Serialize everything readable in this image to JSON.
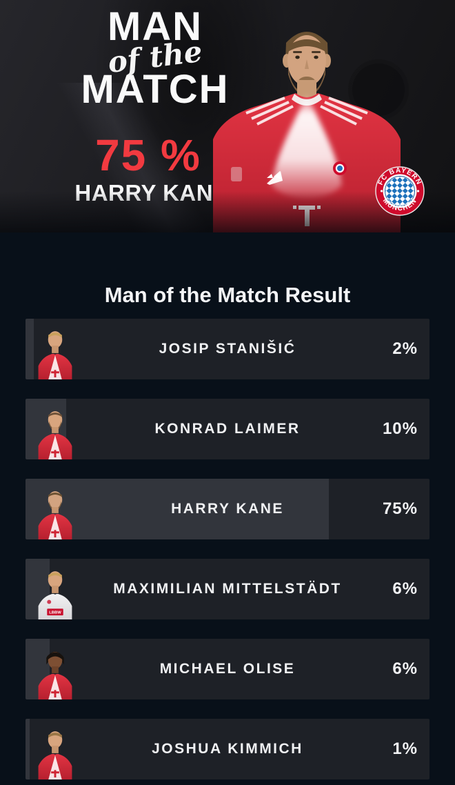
{
  "banner": {
    "title_line1": "MAN",
    "title_line2": "of the",
    "title_line3": "MATCH",
    "winner_percent": "75 %",
    "winner_name": "HARRY KANE",
    "badge_top_text": "FC BAYERN",
    "badge_bottom_text": "MÜNCHEN"
  },
  "results": {
    "heading": "Man of the Match Result",
    "rows": [
      {
        "name": "JOSIP STANIŠIĆ",
        "percent": 2,
        "percent_label": "2%"
      },
      {
        "name": "KONRAD LAIMER",
        "percent": 10,
        "percent_label": "10%"
      },
      {
        "name": "HARRY KANE",
        "percent": 75,
        "percent_label": "75%"
      },
      {
        "name": "MAXIMILIAN MITTELSTÄDT",
        "percent": 6,
        "percent_label": "6%"
      },
      {
        "name": "MICHAEL OLISE",
        "percent": 6,
        "percent_label": "6%"
      },
      {
        "name": "JOSHUA KIMMICH",
        "percent": 1,
        "percent_label": "1%"
      }
    ]
  },
  "colors": {
    "accent_red": "#f23a40",
    "bayern_red": "#cf0a2c",
    "bayern_blue": "#1e72bb",
    "page_background": "#081019",
    "row_background": "#1e2127",
    "row_fill": "#32353c"
  }
}
